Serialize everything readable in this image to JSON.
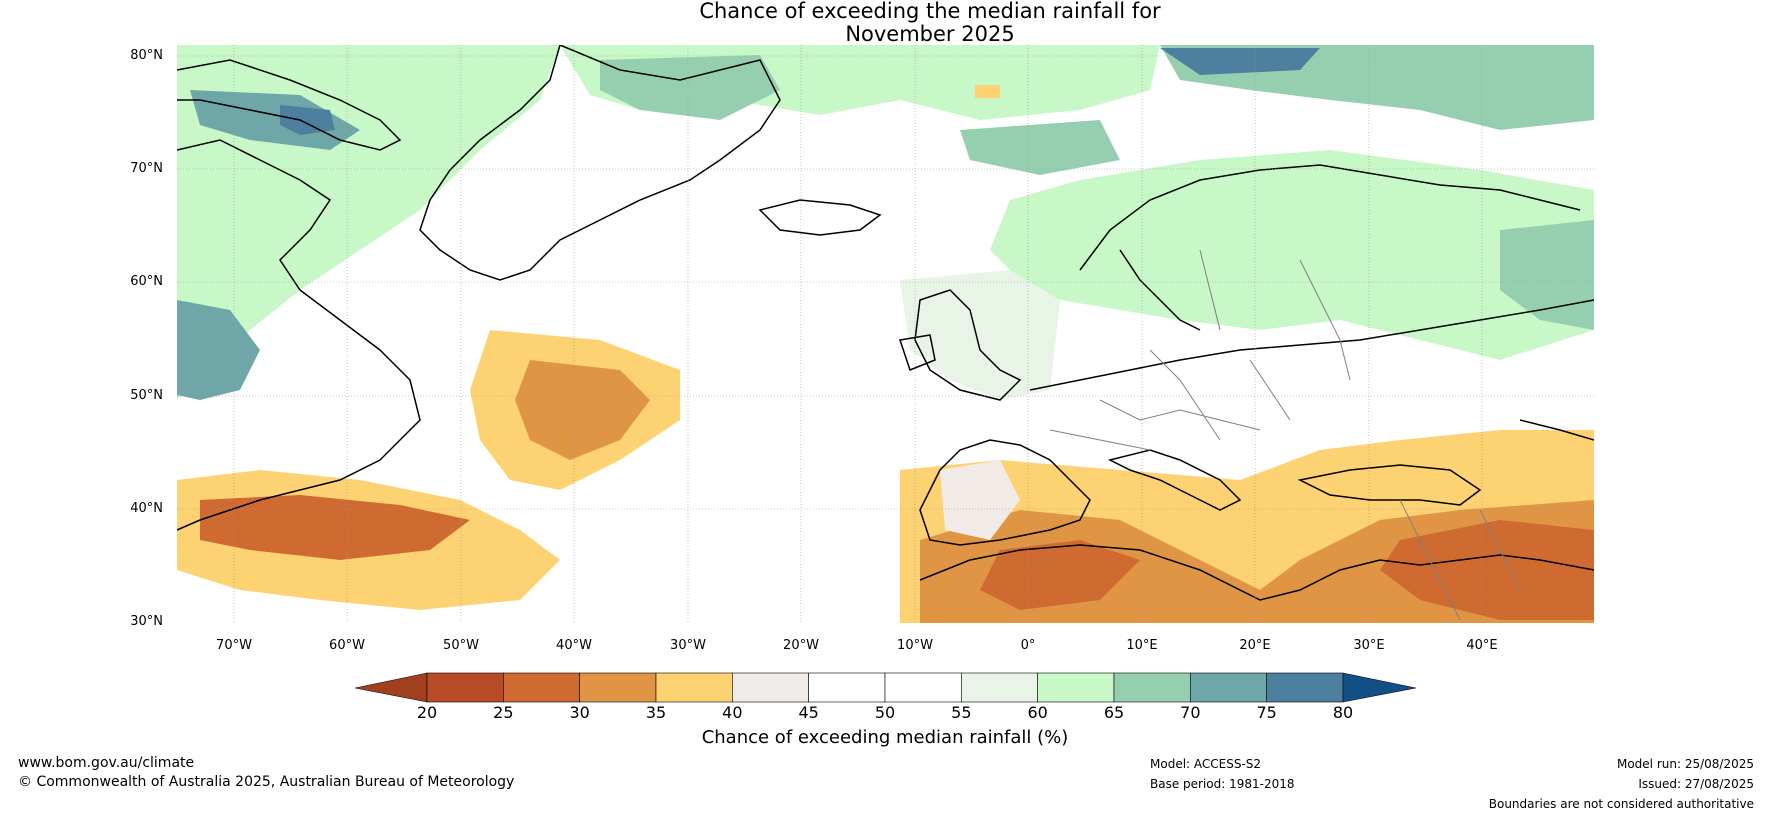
{
  "title_line1": "Chance of exceeding the median rainfall for",
  "title_line2": "November 2025",
  "map": {
    "lat_labels": [
      "80°N",
      "70°N",
      "60°N",
      "50°N",
      "40°N",
      "30°N"
    ],
    "lon_labels": [
      "70°W",
      "60°W",
      "50°W",
      "40°W",
      "30°W",
      "20°W",
      "10°W",
      "0°",
      "10°E",
      "20°E",
      "30°E",
      "40°E"
    ],
    "ocean_color": "#ffffff",
    "coastline_color": "#000000",
    "border_color": "#808080"
  },
  "colorbar": {
    "ticks": [
      "20",
      "25",
      "30",
      "35",
      "40",
      "45",
      "50",
      "55",
      "60",
      "65",
      "70",
      "75",
      "80"
    ],
    "colors": [
      "#a0401f",
      "#b84c27",
      "#cf6a30",
      "#e09545",
      "#fdd272",
      "#f0ebe6",
      "#ffffff",
      "#ffffff",
      "#e8f5e6",
      "#c8f7c8",
      "#96cfb0",
      "#6fa7a8",
      "#4d7f9e",
      "#114f86"
    ],
    "label": "Chance of exceeding median rainfall (%)"
  },
  "footer": {
    "website": "www.bom.gov.au/climate",
    "copyright": "© Commonwealth of Australia 2025, Australian Bureau of Meteorology",
    "model": "Model: ACCESS-S2",
    "base_period": "Base period: 1981-2018",
    "model_run": "Model run: 25/08/2025",
    "issued": "Issued: 27/08/2025",
    "disclaimer": "Boundaries are not considered authoritative"
  }
}
